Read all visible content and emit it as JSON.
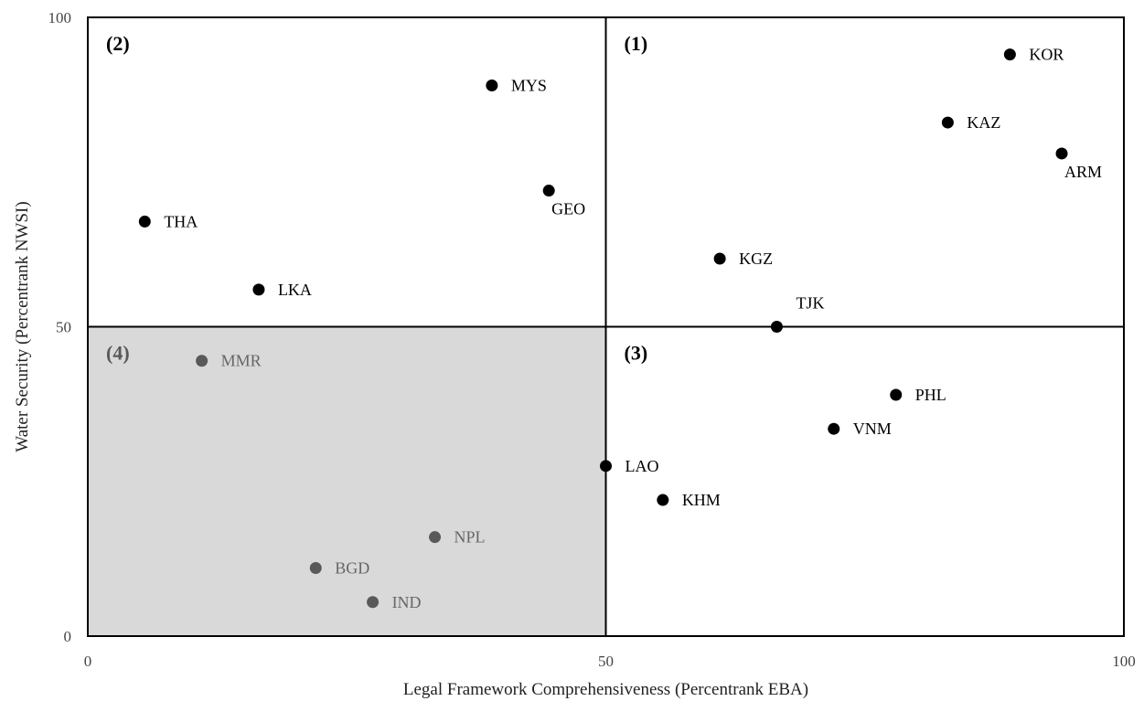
{
  "chart_data": {
    "type": "scatter",
    "title": "",
    "xlabel": "Legal Framework Comprehensiveness (Percentrank EBA)",
    "ylabel": "Water Security (Percentrank NWSI)",
    "xlim": [
      0,
      100
    ],
    "ylim": [
      0,
      100
    ],
    "x_ticks": [
      "0",
      "50",
      "100"
    ],
    "y_ticks": [
      "0",
      "50",
      "100"
    ],
    "grid": false,
    "divider": {
      "x": 50,
      "y": 50
    },
    "highlight_region": {
      "x": [
        0,
        50
      ],
      "y": [
        0,
        50
      ],
      "color": "#d9d9d9"
    },
    "quadrant_labels": [
      {
        "text": "(1)",
        "x": 1,
        "y": 99
      },
      {
        "text": "(2)",
        "x": 51,
        "y": 99
      },
      {
        "text": "(3)",
        "x": 51,
        "y": 48
      },
      {
        "text": "(4)",
        "x": 1,
        "y": 48
      }
    ],
    "points": [
      {
        "label": "KOR",
        "x": 89,
        "y": 94,
        "color": "#000000",
        "label_pos": "right"
      },
      {
        "label": "KAZ",
        "x": 83,
        "y": 83,
        "color": "#000000",
        "label_pos": "right"
      },
      {
        "label": "ARM",
        "x": 94,
        "y": 78,
        "color": "#000000",
        "label_pos": "below-right"
      },
      {
        "label": "MYS",
        "x": 39,
        "y": 89,
        "color": "#000000",
        "label_pos": "right"
      },
      {
        "label": "GEO",
        "x": 44.5,
        "y": 72,
        "color": "#000000",
        "label_pos": "below-right"
      },
      {
        "label": "THA",
        "x": 5.5,
        "y": 67,
        "color": "#000000",
        "label_pos": "right"
      },
      {
        "label": "LKA",
        "x": 16.5,
        "y": 56,
        "color": "#000000",
        "label_pos": "right"
      },
      {
        "label": "KGZ",
        "x": 61,
        "y": 61,
        "color": "#000000",
        "label_pos": "right"
      },
      {
        "label": "TJK",
        "x": 66.5,
        "y": 50,
        "color": "#000000",
        "label_pos": "above-right"
      },
      {
        "label": "PHL",
        "x": 78,
        "y": 39,
        "color": "#000000",
        "label_pos": "right"
      },
      {
        "label": "VNM",
        "x": 72,
        "y": 33.5,
        "color": "#000000",
        "label_pos": "right"
      },
      {
        "label": "LAO",
        "x": 50,
        "y": 27.5,
        "color": "#000000",
        "label_pos": "right"
      },
      {
        "label": "KHM",
        "x": 55.5,
        "y": 22,
        "color": "#000000",
        "label_pos": "right"
      },
      {
        "label": "MMR",
        "x": 11,
        "y": 44.5,
        "color": "#595959",
        "label_pos": "right"
      },
      {
        "label": "NPL",
        "x": 33.5,
        "y": 16,
        "color": "#595959",
        "label_pos": "right"
      },
      {
        "label": "BGD",
        "x": 22,
        "y": 11,
        "color": "#595959",
        "label_pos": "right"
      },
      {
        "label": "IND",
        "x": 27.5,
        "y": 5.5,
        "color": "#595959",
        "label_pos": "right"
      }
    ]
  }
}
